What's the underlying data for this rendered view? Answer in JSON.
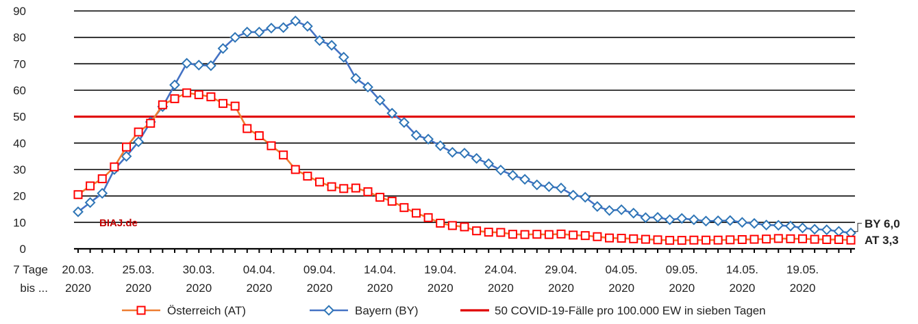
{
  "chart_data": {
    "type": "line",
    "title": "",
    "xlabel": "7 Tage bis ...",
    "xlabel_lines": [
      "7 Tage",
      "bis ..."
    ],
    "ylabel": "",
    "ylim": [
      0,
      90
    ],
    "yticks": [
      0,
      10,
      20,
      30,
      40,
      50,
      60,
      70,
      80,
      90
    ],
    "grid": true,
    "legend_position": "bottom",
    "watermark": "BIAJ.de",
    "x_start": "20.03.2020",
    "x_end": "23.05.2020",
    "x_tick_labels": [
      {
        "date": "20.03.",
        "year": "2020",
        "index": 0
      },
      {
        "date": "25.03.",
        "year": "2020",
        "index": 5
      },
      {
        "date": "30.03.",
        "year": "2020",
        "index": 10
      },
      {
        "date": "04.04.",
        "year": "2020",
        "index": 15
      },
      {
        "date": "09.04.",
        "year": "2020",
        "index": 20
      },
      {
        "date": "14.04.",
        "year": "2020",
        "index": 25
      },
      {
        "date": "19.04.",
        "year": "2020",
        "index": 30
      },
      {
        "date": "24.04.",
        "year": "2020",
        "index": 35
      },
      {
        "date": "29.04.",
        "year": "2020",
        "index": 40
      },
      {
        "date": "04.05.",
        "year": "2020",
        "index": 45
      },
      {
        "date": "09.05.",
        "year": "2020",
        "index": 50
      },
      {
        "date": "14.05.",
        "year": "2020",
        "index": 55
      },
      {
        "date": "19.05.",
        "year": "2020",
        "index": 60
      }
    ],
    "threshold": {
      "name": "50 COVID-19-Fälle pro 100.000 EW in sieben Tagen",
      "value": 50,
      "color": "#e00000"
    },
    "series": [
      {
        "name": "Österreich (AT)",
        "line_color": "#ed7d31",
        "marker": "square",
        "marker_color": "#ff0000",
        "end_label": "AT 3,3",
        "values": [
          20.5,
          23.8,
          26.5,
          31.0,
          38.5,
          44.2,
          47.5,
          54.5,
          56.8,
          59.0,
          58.3,
          57.5,
          55.0,
          54.0,
          45.5,
          42.8,
          39.0,
          35.5,
          30.0,
          27.5,
          25.3,
          23.5,
          22.8,
          23.0,
          21.6,
          19.5,
          18.0,
          15.6,
          13.5,
          11.8,
          9.7,
          8.8,
          8.3,
          6.8,
          6.3,
          6.2,
          5.5,
          5.4,
          5.5,
          5.4,
          5.6,
          5.2,
          5.0,
          4.6,
          4.1,
          4.0,
          3.8,
          3.6,
          3.4,
          3.2,
          3.2,
          3.3,
          3.3,
          3.3,
          3.4,
          3.5,
          3.6,
          3.7,
          3.9,
          3.8,
          3.8,
          3.6,
          3.5,
          3.5,
          3.3
        ]
      },
      {
        "name": "Bayern (BY)",
        "line_color": "#4472c4",
        "marker": "diamond",
        "marker_color": "#2e75b6",
        "end_label": "BY 6,0",
        "values": [
          14.0,
          17.5,
          21.0,
          30.0,
          35.0,
          40.5,
          48.0,
          53.8,
          62.0,
          70.2,
          69.5,
          69.3,
          75.8,
          80.0,
          82.0,
          82.0,
          83.5,
          83.7,
          86.2,
          84.2,
          78.8,
          77.0,
          72.5,
          64.5,
          61.2,
          56.2,
          51.3,
          47.8,
          43.0,
          41.5,
          39.0,
          36.5,
          36.2,
          34.2,
          32.2,
          29.8,
          27.8,
          26.3,
          24.2,
          23.5,
          23.0,
          20.3,
          19.5,
          16.0,
          14.5,
          14.8,
          13.5,
          11.8,
          11.9,
          11.0,
          11.5,
          11.0,
          10.5,
          10.6,
          10.7,
          10.0,
          9.6,
          9.0,
          8.9,
          8.6,
          7.9,
          7.4,
          7.2,
          6.6,
          6.0
        ]
      }
    ]
  }
}
